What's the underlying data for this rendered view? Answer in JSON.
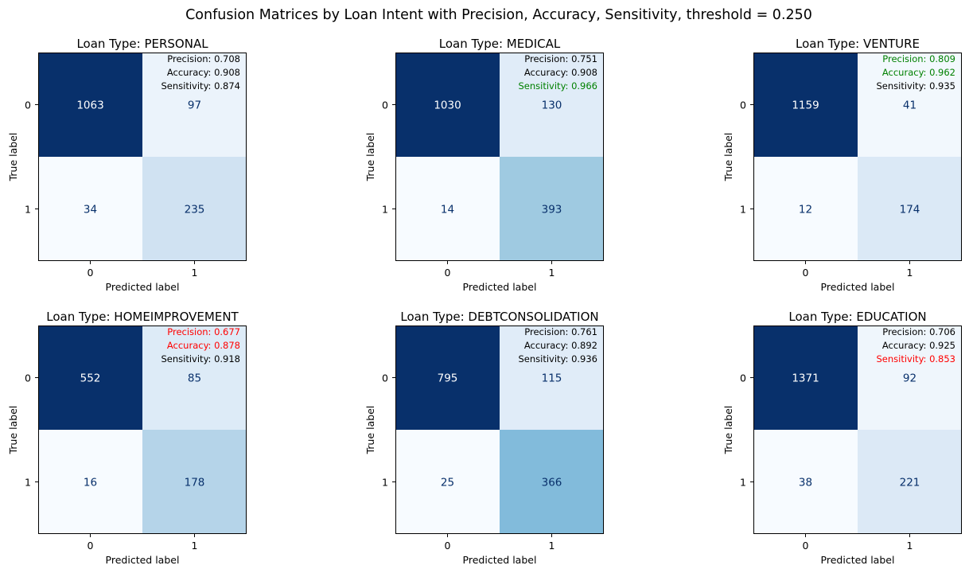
{
  "chart_data": {
    "type": "heatmap",
    "title": "Confusion Matrices by Loan Intent with Precision, Accuracy, Sensitivity, threshold = 0.250",
    "xlabel": "Predicted label",
    "ylabel": "True label",
    "tick_labels": [
      "0",
      "1"
    ],
    "colormap": "Blues",
    "colors": {
      "good": "#008000",
      "bad": "#ff0000",
      "neutral": "#000000",
      "light_text": "#ffffff",
      "dark_text": "#08306b"
    },
    "panels": [
      {
        "title": "Loan Type: PERSONAL",
        "matrix": [
          [
            1063,
            97
          ],
          [
            34,
            235
          ]
        ],
        "metrics": [
          {
            "label": "Precision: 0.708",
            "status": "neutral"
          },
          {
            "label": "Accuracy: 0.908",
            "status": "neutral"
          },
          {
            "label": "Sensitivity: 0.874",
            "status": "neutral"
          }
        ]
      },
      {
        "title": "Loan Type: MEDICAL",
        "matrix": [
          [
            1030,
            130
          ],
          [
            14,
            393
          ]
        ],
        "metrics": [
          {
            "label": "Precision: 0.751",
            "status": "neutral"
          },
          {
            "label": "Accuracy: 0.908",
            "status": "neutral"
          },
          {
            "label": "Sensitivity: 0.966",
            "status": "good"
          }
        ]
      },
      {
        "title": "Loan Type: VENTURE",
        "matrix": [
          [
            1159,
            41
          ],
          [
            12,
            174
          ]
        ],
        "metrics": [
          {
            "label": "Precision: 0.809",
            "status": "good"
          },
          {
            "label": "Accuracy: 0.962",
            "status": "good"
          },
          {
            "label": "Sensitivity: 0.935",
            "status": "neutral"
          }
        ]
      },
      {
        "title": "Loan Type: HOMEIMPROVEMENT",
        "matrix": [
          [
            552,
            85
          ],
          [
            16,
            178
          ]
        ],
        "metrics": [
          {
            "label": "Precision: 0.677",
            "status": "bad"
          },
          {
            "label": "Accuracy: 0.878",
            "status": "bad"
          },
          {
            "label": "Sensitivity: 0.918",
            "status": "neutral"
          }
        ]
      },
      {
        "title": "Loan Type: DEBTCONSOLIDATION",
        "matrix": [
          [
            795,
            115
          ],
          [
            25,
            366
          ]
        ],
        "metrics": [
          {
            "label": "Precision: 0.761",
            "status": "neutral"
          },
          {
            "label": "Accuracy: 0.892",
            "status": "neutral"
          },
          {
            "label": "Sensitivity: 0.936",
            "status": "neutral"
          }
        ]
      },
      {
        "title": "Loan Type: EDUCATION",
        "matrix": [
          [
            1371,
            92
          ],
          [
            38,
            221
          ]
        ],
        "metrics": [
          {
            "label": "Precision: 0.706",
            "status": "neutral"
          },
          {
            "label": "Accuracy: 0.925",
            "status": "neutral"
          },
          {
            "label": "Sensitivity: 0.853",
            "status": "bad"
          }
        ]
      }
    ]
  }
}
